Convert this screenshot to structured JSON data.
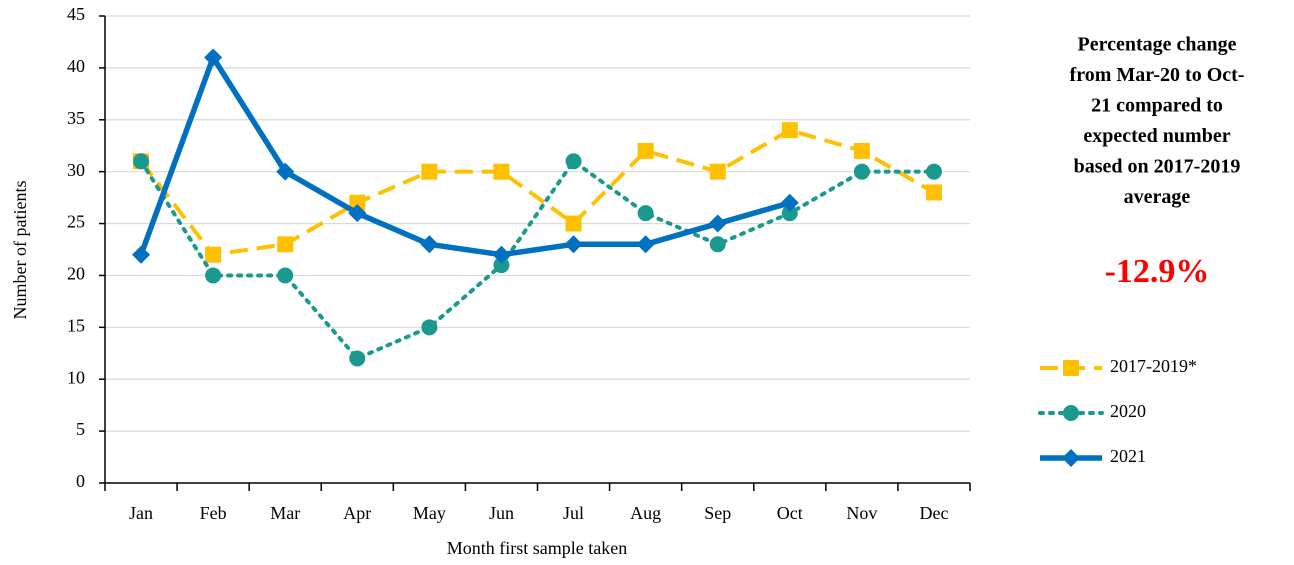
{
  "chart_data": {
    "type": "line",
    "x_label": "Month first sample taken",
    "y_label": "Number of patients",
    "categories": [
      "Jan",
      "Feb",
      "Mar",
      "Apr",
      "May",
      "Jun",
      "Jul",
      "Aug",
      "Sep",
      "Oct",
      "Nov",
      "Dec"
    ],
    "series": [
      {
        "name": "2017-2019*",
        "color": "#FFC000",
        "dash": "dashed",
        "marker": "square",
        "values": [
          31,
          22,
          23,
          27,
          30,
          30,
          25,
          32,
          30,
          34,
          32,
          28
        ]
      },
      {
        "name": "2020",
        "color": "#1A9A8F",
        "dash": "dotted",
        "marker": "circle",
        "values": [
          31,
          20,
          20,
          12,
          15,
          21,
          31,
          26,
          23,
          26,
          30,
          30
        ]
      },
      {
        "name": "2021",
        "color": "#0070C0",
        "dash": "solid",
        "marker": "diamond",
        "values": [
          22,
          41,
          30,
          26,
          23,
          22,
          23,
          23,
          25,
          27,
          null,
          null
        ]
      }
    ],
    "ylim": [
      0,
      45
    ],
    "yticks": [
      0,
      5,
      10,
      15,
      20,
      25,
      30,
      35,
      40,
      45
    ],
    "grid": true,
    "annotation_lines": [
      "Percentage change",
      "from Mar-20 to Oct-",
      "21 compared to",
      "expected number",
      "based on 2017-2019",
      "average"
    ],
    "highlight": "-12.9%"
  }
}
